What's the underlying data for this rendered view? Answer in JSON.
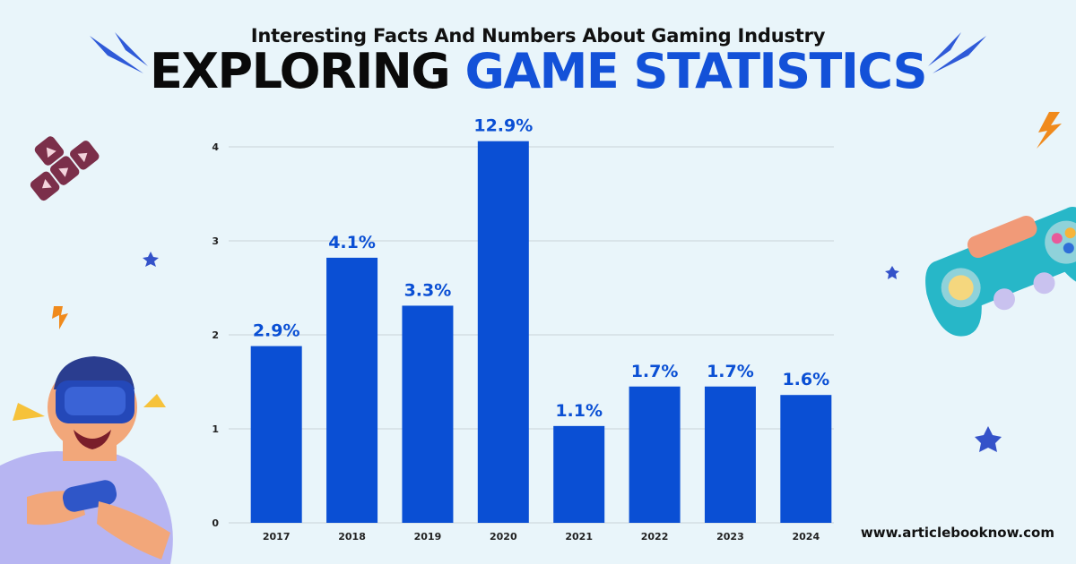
{
  "header": {
    "subtitle": "Interesting Facts And Numbers About Gaming Industry",
    "title_part1": "EXPLORING",
    "title_part2": "GAME STATISTICS"
  },
  "footer": {
    "website": "www.articlebooknow.com"
  },
  "colors": {
    "bar": "#0a4fd4",
    "label": "#0a4fd4",
    "accent": "#1351d8",
    "background": "#e9f5fa"
  },
  "chart_data": {
    "type": "bar",
    "categories": [
      "2017",
      "2018",
      "2019",
      "2020",
      "2021",
      "2022",
      "2023",
      "2024"
    ],
    "values": [
      1.88,
      2.82,
      2.31,
      4.06,
      1.03,
      1.45,
      1.45,
      1.36
    ],
    "data_labels": [
      "2.9%",
      "4.1%",
      "3.3%",
      "12.9%",
      "1.1%",
      "1.7%",
      "1.7%",
      "1.6%"
    ],
    "yticks": [
      0,
      1,
      2,
      3,
      4
    ],
    "ylim": [
      0,
      4.3
    ],
    "grid": true,
    "title": "",
    "xlabel": "",
    "ylabel": ""
  }
}
